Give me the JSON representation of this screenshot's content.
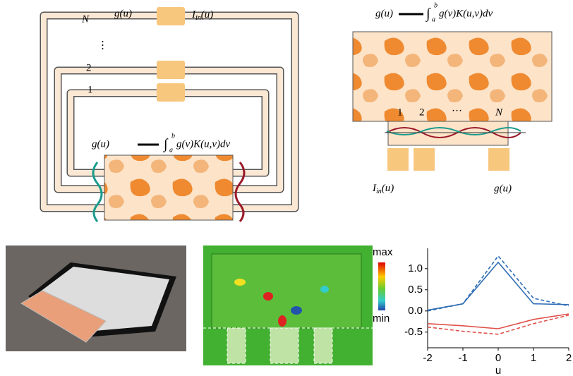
{
  "diagram_a": {
    "loop_top": "N",
    "dots": "⋮",
    "loop_2": "2",
    "loop_1": "1",
    "output": "g(u)",
    "input_symbol": "I",
    "input_subscript": "in",
    "input_arg": "(u)",
    "formula_left": "g(u)",
    "formula_integral": "∫",
    "formula_lower": "a",
    "formula_upper": "b",
    "formula_right": "g(v)K(u,v)dv"
  },
  "diagram_b": {
    "formula_left": "g(u)",
    "formula_integral": "∫",
    "formula_lower": "a",
    "formula_upper": "b",
    "formula_right": "g(v)K(u,v)dv",
    "port_1": "1",
    "port_2": "2",
    "port_dots": "···",
    "port_n": "N",
    "input_symbol": "I",
    "input_subscript": "in",
    "input_arg": "(u)",
    "output": "g(u)"
  },
  "colorbar": {
    "max": "max",
    "min": "min"
  },
  "chart_data": {
    "type": "line",
    "x": [
      -2,
      -1,
      0,
      1,
      2
    ],
    "x_label": "u",
    "series": [
      {
        "color": "#2f6db5",
        "dash": false,
        "values": [
          0.02,
          0.17,
          1.15,
          0.17,
          0.15
        ]
      },
      {
        "color": "#2f6db5",
        "dash": true,
        "values": [
          0.0,
          0.17,
          1.3,
          0.3,
          0.12
        ]
      },
      {
        "color": "#e0504a",
        "dash": false,
        "values": [
          -0.3,
          -0.35,
          -0.42,
          -0.2,
          -0.07
        ]
      },
      {
        "color": "#e0504a",
        "dash": true,
        "values": [
          -0.38,
          -0.48,
          -0.55,
          -0.3,
          -0.1
        ]
      }
    ],
    "xlim": [
      -2,
      2
    ],
    "ylim": [
      -0.87,
      1.48
    ],
    "xticks": [
      -2,
      -1,
      0,
      1,
      2
    ],
    "yticks": [
      {
        "value": 1.0,
        "label": "1.0"
      },
      {
        "value": 0.5,
        "label": "0.5"
      },
      {
        "value": 0.0,
        "label": "0.0"
      },
      {
        "value": -0.5,
        "label": "-0.5"
      }
    ]
  }
}
